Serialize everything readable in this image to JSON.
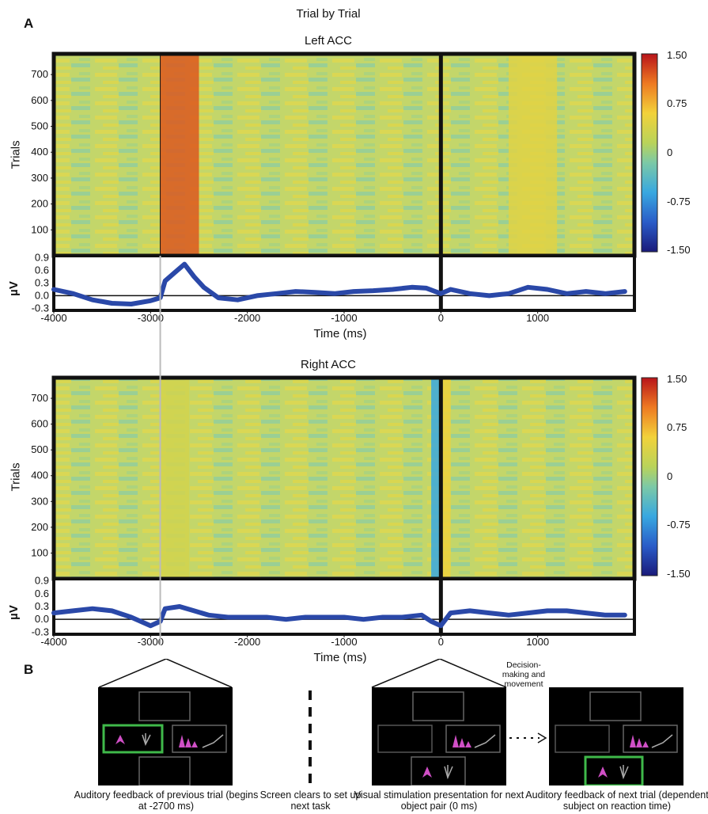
{
  "figure": {
    "panel_a_label": "A",
    "panel_b_label": "B",
    "main_title": "Trial by Trial"
  },
  "chart_data": [
    {
      "type": "heatmap",
      "title": "Left ACC",
      "ylabel": "Trials",
      "x_range": [
        -4000,
        2000
      ],
      "y_range": [
        0,
        780
      ],
      "y_ticks": [
        "700",
        "600",
        "500",
        "400",
        "300",
        "200",
        "100"
      ],
      "y_tick_values": [
        700,
        600,
        500,
        400,
        300,
        200,
        100
      ],
      "colorbar": {
        "ticks": [
          "1.50",
          "0.75",
          "0",
          "-0.75",
          "-1.50"
        ],
        "range": [
          -1.5,
          1.5
        ]
      },
      "bands": [
        {
          "x_start": -2900,
          "x_end": -2500,
          "value": 1.2
        },
        {
          "x_start": 700,
          "x_end": 1200,
          "value": 0.45
        }
      ],
      "event_lines_ms": [
        -2900,
        0
      ]
    },
    {
      "type": "line",
      "ylabel": "µV",
      "xlabel": "Time (ms)",
      "x_ticks": [
        "-4000",
        "-3000",
        "-2000",
        "-1000",
        "0",
        "1000"
      ],
      "x_tick_values": [
        -4000,
        -3000,
        -2000,
        -1000,
        0,
        1000
      ],
      "y_ticks": [
        "0.9",
        "0.6",
        "0.3",
        "0.0",
        "-0.3"
      ],
      "y_tick_values": [
        0.9,
        0.6,
        0.3,
        0.0,
        -0.3
      ],
      "ylim": [
        -0.35,
        0.95
      ],
      "x": [
        -4000,
        -3800,
        -3600,
        -3400,
        -3200,
        -3000,
        -2900,
        -2850,
        -2750,
        -2650,
        -2550,
        -2450,
        -2300,
        -2100,
        -1900,
        -1700,
        -1500,
        -1300,
        -1100,
        -900,
        -700,
        -500,
        -300,
        -150,
        0,
        100,
        300,
        500,
        700,
        900,
        1100,
        1300,
        1500,
        1700,
        1900
      ],
      "values": [
        0.15,
        0.05,
        -0.1,
        -0.18,
        -0.2,
        -0.12,
        -0.05,
        0.35,
        0.55,
        0.75,
        0.45,
        0.2,
        -0.05,
        -0.1,
        0.0,
        0.05,
        0.1,
        0.08,
        0.05,
        0.1,
        0.12,
        0.15,
        0.2,
        0.18,
        0.05,
        0.15,
        0.05,
        0.0,
        0.05,
        0.2,
        0.15,
        0.05,
        0.1,
        0.05,
        0.1
      ]
    },
    {
      "type": "heatmap",
      "title": "Right ACC",
      "ylabel": "Trials",
      "x_range": [
        -4000,
        2000
      ],
      "y_range": [
        0,
        780
      ],
      "y_ticks": [
        "700",
        "600",
        "500",
        "400",
        "300",
        "200",
        "100"
      ],
      "y_tick_values": [
        700,
        600,
        500,
        400,
        300,
        200,
        100
      ],
      "colorbar": {
        "ticks": [
          "1.50",
          "0.75",
          "0",
          "-0.75",
          "-1.50"
        ],
        "range": [
          -1.5,
          1.5
        ]
      },
      "bands": [
        {
          "x_start": -2900,
          "x_end": -2600,
          "value": 0.35
        },
        {
          "x_start": -100,
          "x_end": 0,
          "value": -0.6
        },
        {
          "x_start": 0,
          "x_end": 100,
          "value": 0.55
        }
      ],
      "event_lines_ms": [
        -2900,
        0
      ]
    },
    {
      "type": "line",
      "ylabel": "µV",
      "xlabel": "Time (ms)",
      "x_ticks": [
        "-4000",
        "-3000",
        "-2000",
        "-1000",
        "0",
        "1000"
      ],
      "x_tick_values": [
        -4000,
        -3000,
        -2000,
        -1000,
        0,
        1000
      ],
      "y_ticks": [
        "0.9",
        "0.6",
        "0.3",
        "0.0",
        "-0.3"
      ],
      "y_tick_values": [
        0.9,
        0.6,
        0.3,
        0.0,
        -0.3
      ],
      "ylim": [
        -0.35,
        0.95
      ],
      "x": [
        -4000,
        -3800,
        -3600,
        -3400,
        -3200,
        -3000,
        -2900,
        -2850,
        -2700,
        -2550,
        -2400,
        -2200,
        -2000,
        -1800,
        -1600,
        -1400,
        -1200,
        -1000,
        -800,
        -600,
        -400,
        -200,
        -100,
        0,
        100,
        300,
        500,
        700,
        900,
        1100,
        1300,
        1500,
        1700,
        1900
      ],
      "values": [
        0.15,
        0.2,
        0.25,
        0.2,
        0.05,
        -0.15,
        -0.05,
        0.25,
        0.3,
        0.2,
        0.1,
        0.05,
        0.05,
        0.05,
        0.0,
        0.05,
        0.05,
        0.05,
        0.0,
        0.05,
        0.05,
        0.1,
        -0.05,
        -0.15,
        0.15,
        0.2,
        0.15,
        0.1,
        0.15,
        0.2,
        0.2,
        0.15,
        0.1,
        0.1
      ]
    }
  ],
  "panel_b": {
    "decision_label": "Decision-making and movement",
    "captions": [
      "Auditory feedback of previous trial (begins at -2700 ms)",
      "Screen clears to set up next task",
      "Visual stimulation presentation for next object pair (0 ms)",
      "Auditory feedback of next trial (dependent subject on reaction time)"
    ],
    "highlight_color": "#3fb94a",
    "pink_color": "#d04fc6"
  }
}
